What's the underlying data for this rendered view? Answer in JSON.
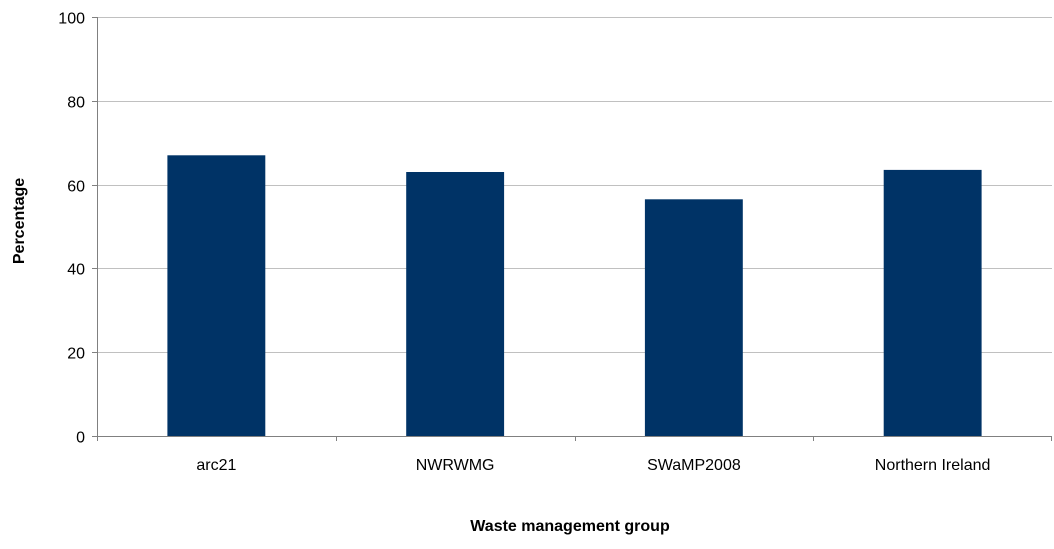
{
  "chart_data": {
    "type": "bar",
    "categories": [
      "arc21",
      "NWRWMG",
      "SWaMP2008",
      "Northern Ireland"
    ],
    "values": [
      67,
      63,
      56.5,
      63.5
    ],
    "title": "",
    "xlabel": "Waste management group",
    "ylabel": "Percentage",
    "ylim": [
      0,
      100
    ],
    "yticks": [
      "0",
      "20",
      "40",
      "60",
      "80",
      "100"
    ],
    "grid": true,
    "legend": "none",
    "colors": {
      "bar": "#003366",
      "grid": "#c0c0c0",
      "axis": "#808080"
    }
  }
}
